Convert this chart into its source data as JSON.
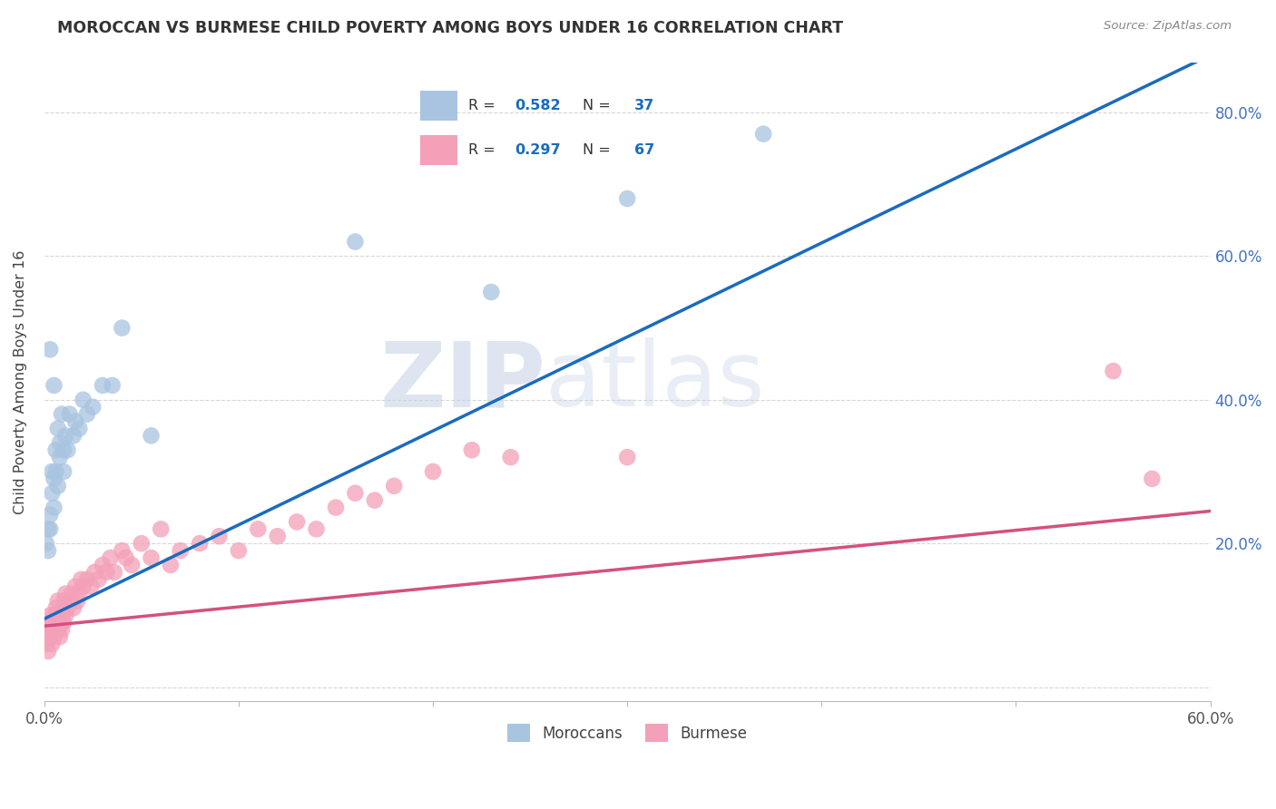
{
  "title": "MOROCCAN VS BURMESE CHILD POVERTY AMONG BOYS UNDER 16 CORRELATION CHART",
  "source": "Source: ZipAtlas.com",
  "ylabel": "Child Poverty Among Boys Under 16",
  "xlim": [
    0.0,
    0.6
  ],
  "ylim": [
    -0.02,
    0.87
  ],
  "moroccan_R": 0.582,
  "moroccan_N": 37,
  "burmese_R": 0.297,
  "burmese_N": 67,
  "moroccan_color": "#a8c4e0",
  "moroccan_line_color": "#1a6bbf",
  "burmese_color": "#f4a0b8",
  "burmese_line_color": "#d45080",
  "watermark_zip": "ZIP",
  "watermark_atlas": "atlas",
  "background_color": "#ffffff",
  "moroccan_x": [
    0.001,
    0.002,
    0.002,
    0.003,
    0.003,
    0.003,
    0.004,
    0.004,
    0.005,
    0.005,
    0.005,
    0.006,
    0.006,
    0.007,
    0.007,
    0.008,
    0.008,
    0.009,
    0.01,
    0.01,
    0.011,
    0.012,
    0.013,
    0.015,
    0.016,
    0.018,
    0.02,
    0.022,
    0.025,
    0.03,
    0.035,
    0.04,
    0.055,
    0.16,
    0.23,
    0.3,
    0.37
  ],
  "moroccan_y": [
    0.2,
    0.22,
    0.19,
    0.47,
    0.22,
    0.24,
    0.27,
    0.3,
    0.42,
    0.29,
    0.25,
    0.33,
    0.3,
    0.36,
    0.28,
    0.34,
    0.32,
    0.38,
    0.33,
    0.3,
    0.35,
    0.33,
    0.38,
    0.35,
    0.37,
    0.36,
    0.4,
    0.38,
    0.39,
    0.42,
    0.42,
    0.5,
    0.35,
    0.62,
    0.55,
    0.68,
    0.77
  ],
  "burmese_x": [
    0.001,
    0.001,
    0.002,
    0.002,
    0.002,
    0.003,
    0.003,
    0.003,
    0.004,
    0.004,
    0.005,
    0.005,
    0.005,
    0.006,
    0.006,
    0.007,
    0.007,
    0.008,
    0.008,
    0.009,
    0.009,
    0.01,
    0.01,
    0.011,
    0.011,
    0.012,
    0.013,
    0.014,
    0.015,
    0.016,
    0.017,
    0.018,
    0.019,
    0.02,
    0.022,
    0.024,
    0.026,
    0.028,
    0.03,
    0.032,
    0.034,
    0.036,
    0.04,
    0.042,
    0.045,
    0.05,
    0.055,
    0.06,
    0.065,
    0.07,
    0.08,
    0.09,
    0.1,
    0.11,
    0.12,
    0.13,
    0.14,
    0.15,
    0.16,
    0.17,
    0.18,
    0.2,
    0.22,
    0.24,
    0.3,
    0.55,
    0.57
  ],
  "burmese_y": [
    0.08,
    0.06,
    0.07,
    0.09,
    0.05,
    0.08,
    0.1,
    0.07,
    0.09,
    0.06,
    0.08,
    0.1,
    0.07,
    0.09,
    0.11,
    0.08,
    0.12,
    0.09,
    0.07,
    0.1,
    0.08,
    0.09,
    0.12,
    0.1,
    0.13,
    0.11,
    0.12,
    0.13,
    0.11,
    0.14,
    0.12,
    0.13,
    0.15,
    0.14,
    0.15,
    0.14,
    0.16,
    0.15,
    0.17,
    0.16,
    0.18,
    0.16,
    0.19,
    0.18,
    0.17,
    0.2,
    0.18,
    0.22,
    0.17,
    0.19,
    0.2,
    0.21,
    0.19,
    0.22,
    0.21,
    0.23,
    0.22,
    0.25,
    0.27,
    0.26,
    0.28,
    0.3,
    0.33,
    0.32,
    0.32,
    0.44,
    0.29
  ],
  "moroccan_trend_x": [
    0.0,
    0.6
  ],
  "moroccan_trend_y": [
    0.095,
    0.88
  ],
  "burmese_trend_x": [
    0.0,
    0.6
  ],
  "burmese_trend_y": [
    0.085,
    0.245
  ]
}
